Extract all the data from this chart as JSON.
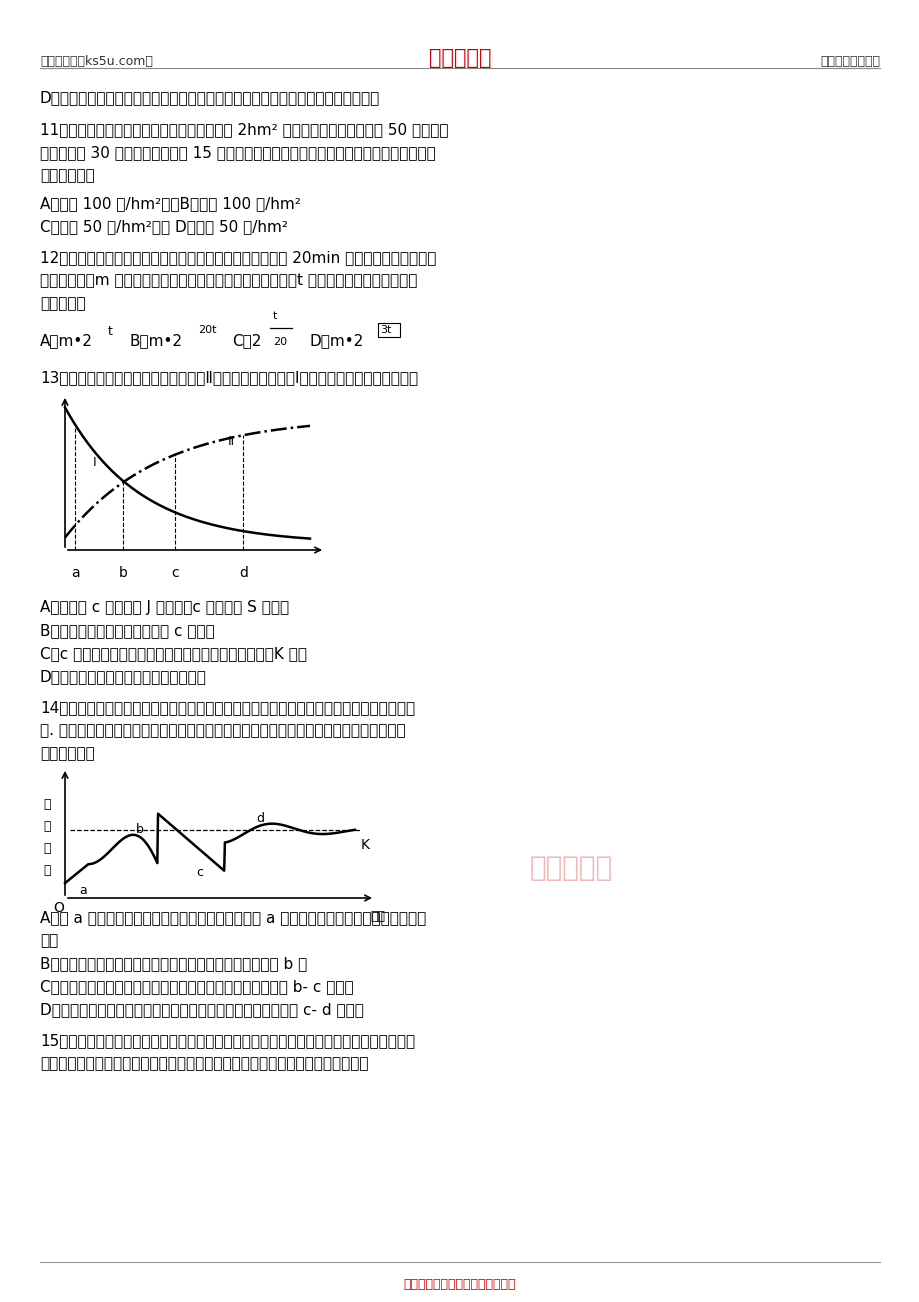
{
  "bg_color": "#ffffff",
  "header_left": "高考资源网（ks5u.com）",
  "header_center": "高考资源网",
  "header_right": "您身边的高考专家",
  "header_center_color": "#cc0000",
  "footer_text": "高考资源网版权所有，侵权必究！",
  "footer_color": "#cc0000",
  "watermark_text": "高考资源网",
  "watermark_color": "#cc3333",
  "q_d": "D．种群密度是种群最基本的数量特征，调查方法有标志重捕法和取样器取样的方法",
  "q11_l1": "11．利用标志重捕法调查田鼠种群密度时，在 2hm² 范围内，第一次捕获标记 50 只田鼠，",
  "q11_l2": "第二次捕获 30 只，其中有标记的 15 只。若标记使得田鼠更容易被捕食，则真实种群密度估",
  "q11_l3": "算值（　　）",
  "q11_a": "A．高于 100 只/hm²　　B．低于 100 只/hm²",
  "q11_b": "C．高于 50 只/hm²　　 D．低于 50 只/hm²",
  "q12_l1": "12．在营养和生存空间等没有限制的理想条件下，某细菌每 20min 就分裂繁殖一代。现将",
  "q12_l2": "该细菌种群（m 个个体）接种到培养基上培养，理想条件下，t 小时后，该种群的个体总数",
  "q12_l3": "是（　　）",
  "q13_title": "13．自然界中某种群死亡率如图中曲线Ⅱ，出生率如图中曲线Ⅰ，下列分析正确的是（　　）",
  "q13_a": "A．种群在 c 点之前呈 J 型增长，c 点之后呈 S 型增长",
  "q13_b": "B．种群数量增长最快的时期是 c 点时期",
  "q13_c": "C．c 点时期此种群的个体总数达到其生活环境负荷量（K 值）",
  "q13_d": "D．曲线表明种群数量变化受食物的影响",
  "q14_l1": "14．某生态系统中生活着多种植食性动物，其中某一植食性动物种群个体数量的变化如图所",
  "q14_l2": "示. 若不考虑该系统内生物个体的迁入与迁出，下列关于该种群个体数量变化的叙述，错误",
  "q14_l3": "的是（　　）",
  "q14_a": "A．若 a 点时环境因素发生变化，但食物量不变，则 a 点以后个体数量变化不符合逻辑斯谛",
  "q14_a2": "增长",
  "q14_b": "B．若该种群出生率提高，个体数量的增加也不会大幅超过 b 点",
  "q14_c": "C．天敌的大量捕食会导致该种群个体数量下降，下降趋势与 b- c 段相似",
  "q14_d": "D．年龄结构变动会导致该种群个体数量发生波动，波动趋势与 c- d 段相似",
  "q15_l1": "15．对海洋岩礁上的藻类植物调查时发现，一般在浅水处生长着绿藻，稍深处是褐藻，再深",
  "q15_l2": "一些的水域中则以红藻为主，直接影响海洋中藻类植物分布的主要因素是（　　）"
}
